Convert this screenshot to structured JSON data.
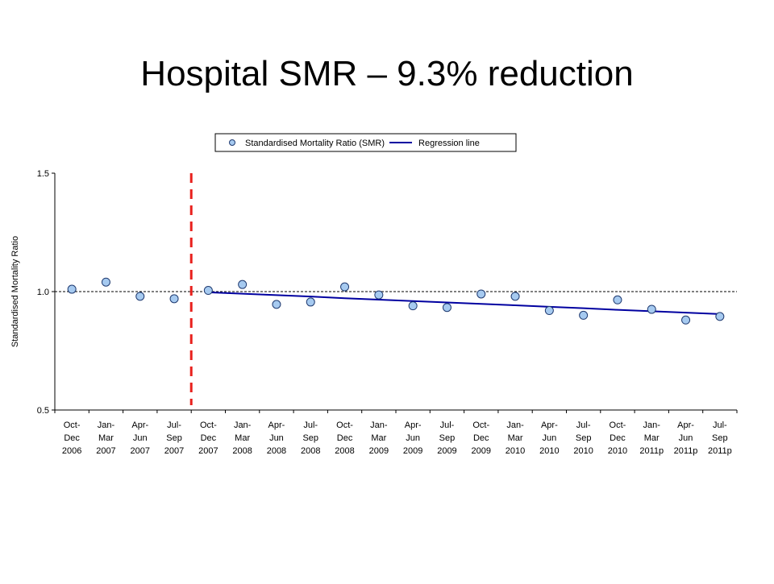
{
  "chart_data": {
    "type": "scatter",
    "title": "Hospital SMR – 9.3% reduction",
    "ylabel": "Standardised Mortality Ratio",
    "categories": [
      [
        "Oct-",
        "Dec",
        "2006"
      ],
      [
        "Jan-",
        "Mar",
        "2007"
      ],
      [
        "Apr-",
        "Jun",
        "2007"
      ],
      [
        "Jul-",
        "Sep",
        "2007"
      ],
      [
        "Oct-",
        "Dec",
        "2007"
      ],
      [
        "Jan-",
        "Mar",
        "2008"
      ],
      [
        "Apr-",
        "Jun",
        "2008"
      ],
      [
        "Jul-",
        "Sep",
        "2008"
      ],
      [
        "Oct-",
        "Dec",
        "2008"
      ],
      [
        "Jan-",
        "Mar",
        "2009"
      ],
      [
        "Apr-",
        "Jun",
        "2009"
      ],
      [
        "Jul-",
        "Sep",
        "2009"
      ],
      [
        "Oct-",
        "Dec",
        "2009"
      ],
      [
        "Jan-",
        "Mar",
        "2010"
      ],
      [
        "Apr-",
        "Jun",
        "2010"
      ],
      [
        "Jul-",
        "Sep",
        "2010"
      ],
      [
        "Oct-",
        "Dec",
        "2010"
      ],
      [
        "Jan-",
        "Mar",
        "2011p"
      ],
      [
        "Apr-",
        "Jun",
        "2011p"
      ],
      [
        "Jul-",
        "Sep",
        "2011p"
      ]
    ],
    "series": [
      {
        "name": "Standardised Mortality Ratio (SMR)",
        "kind": "points",
        "color": "#a6caf0",
        "values": [
          1.01,
          1.04,
          0.98,
          0.97,
          1.005,
          1.03,
          0.946,
          0.956,
          1.02,
          0.986,
          0.94,
          0.933,
          0.99,
          0.98,
          0.92,
          0.9,
          0.965,
          0.925,
          0.88,
          0.895
        ]
      },
      {
        "name": "Regression line",
        "kind": "line",
        "color": "#0000a0",
        "values": [
          null,
          null,
          null,
          null,
          0.997,
          0.991,
          0.985,
          0.979,
          0.972,
          0.966,
          0.96,
          0.954,
          0.948,
          0.942,
          0.936,
          0.93,
          0.923,
          0.917,
          0.911,
          0.905
        ]
      }
    ],
    "ylim": [
      0.5,
      1.5
    ],
    "yticks": [
      {
        "value": 0.5,
        "label": "0.5"
      },
      {
        "value": 1,
        "label": "1.0"
      },
      {
        "value": 1.5,
        "label": "1.5"
      }
    ],
    "reference_line": 1,
    "divider": {
      "position": 3.5,
      "color": "#e8201c"
    },
    "legend": "top"
  }
}
